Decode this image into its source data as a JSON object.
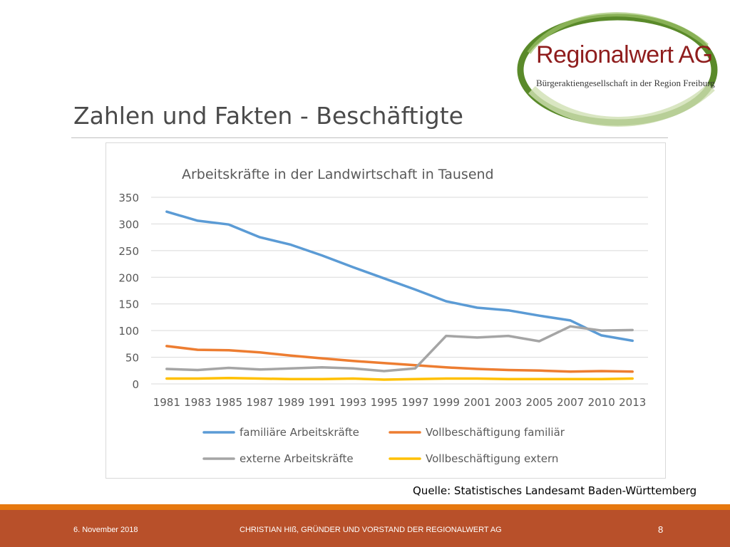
{
  "logo": {
    "title": "Regionalwert AG",
    "subtitle": "Bürgeraktiengesellschaft in der Region Freiburg"
  },
  "slide": {
    "title": "Zahlen und Fakten - Beschäftigte",
    "source": "Quelle: Statistisches Landesamt Baden-Württemberg"
  },
  "footer": {
    "date": "6. November 2018",
    "author": "CHRISTIAN HIß, GRÜNDER UND VORSTAND DER REGIONALWERT AG",
    "page": "8"
  },
  "colors": {
    "footer_bar": "#b8502a",
    "footer_accent": "#e6780f",
    "logo_red": "#8f1d1d",
    "logo_green": "#5a8a2a"
  },
  "chart_data": {
    "type": "line",
    "title": "Arbeitskräfte in der Landwirtschaft in Tausend",
    "categories": [
      "1981",
      "1983",
      "1985",
      "1987",
      "1989",
      "1991",
      "1993",
      "1995",
      "1997",
      "1999",
      "2001",
      "2003",
      "2005",
      "2007",
      "2010",
      "2013"
    ],
    "ylim": [
      0,
      350
    ],
    "yticks": [
      0,
      50,
      100,
      150,
      200,
      250,
      300,
      350
    ],
    "grid": true,
    "legend_position": "bottom",
    "series": [
      {
        "name": "familiäre Arbeitskräfte",
        "color": "#5b9bd5",
        "values": [
          323,
          306,
          299,
          275,
          261,
          241,
          219,
          198,
          177,
          155,
          143,
          138,
          128,
          119,
          91,
          81
        ]
      },
      {
        "name": "Vollbeschäftigung familiär",
        "color": "#ed7d31",
        "values": [
          71,
          64,
          63,
          59,
          53,
          48,
          43,
          39,
          35,
          31,
          28,
          26,
          25,
          23,
          24,
          23
        ]
      },
      {
        "name": "externe Arbeitskräfte",
        "color": "#a5a5a5",
        "values": [
          28,
          26,
          30,
          27,
          29,
          31,
          29,
          24,
          29,
          90,
          87,
          90,
          80,
          108,
          100,
          101
        ]
      },
      {
        "name": "Vollbeschäftigung extern",
        "color": "#ffc000",
        "values": [
          10,
          10,
          11,
          10,
          9,
          9,
          10,
          8,
          9,
          10,
          10,
          9,
          9,
          9,
          9,
          10
        ]
      }
    ]
  }
}
